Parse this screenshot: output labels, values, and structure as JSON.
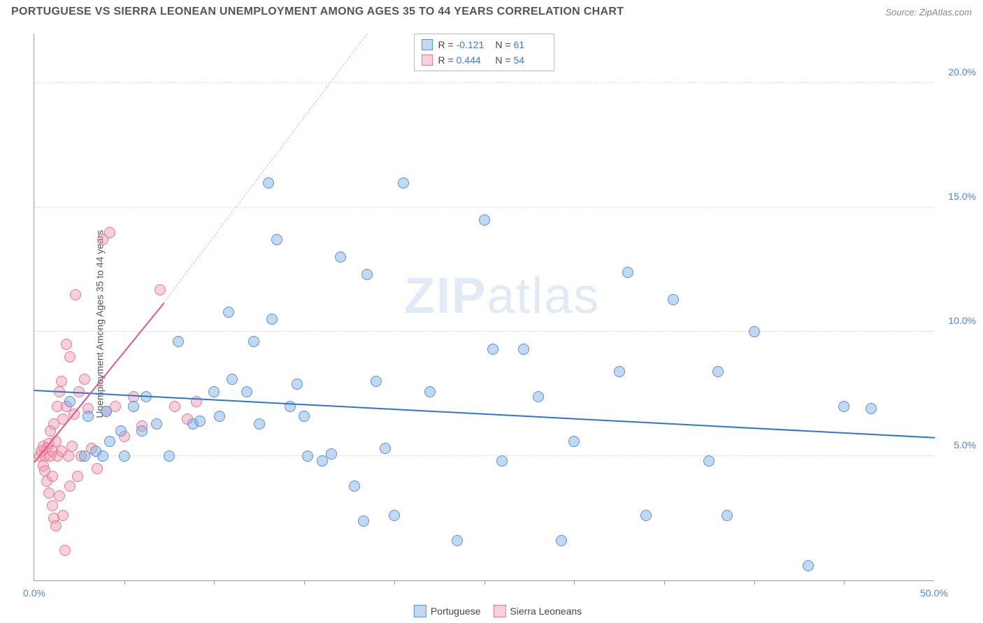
{
  "header": {
    "title": "PORTUGUESE VS SIERRA LEONEAN UNEMPLOYMENT AMONG AGES 35 TO 44 YEARS CORRELATION CHART",
    "source_prefix": "Source: ",
    "source_name": "ZipAtlas.com"
  },
  "ylabel": "Unemployment Among Ages 35 to 44 years",
  "watermark": {
    "bold": "ZIP",
    "rest": "atlas"
  },
  "axes": {
    "xlim": [
      0,
      50
    ],
    "ylim": [
      0,
      22
    ],
    "xtick_marks": [
      5,
      10,
      15,
      20,
      25,
      30,
      35,
      40,
      45
    ],
    "xtick_labels": [
      {
        "v": 0,
        "label": "0.0%"
      },
      {
        "v": 50,
        "label": "50.0%"
      }
    ],
    "ytick_labels": [
      {
        "v": 5,
        "label": "5.0%"
      },
      {
        "v": 10,
        "label": "10.0%"
      },
      {
        "v": 15,
        "label": "15.0%"
      },
      {
        "v": 20,
        "label": "20.0%"
      }
    ],
    "grid_color": "#dddddd",
    "axis_color": "#999999",
    "tick_label_color": "#4a86e8"
  },
  "series": {
    "blue": {
      "label": "Portuguese",
      "fill": "rgba(120,170,230,0.45)",
      "stroke": "#5b8fd6",
      "marker_size": 16,
      "R": "-0.121",
      "N": "61",
      "trend": {
        "x1": 0,
        "y1": 7.7,
        "x2": 50,
        "y2": 5.8,
        "color": "#2f74d0",
        "width": 2,
        "dashed": false
      },
      "points": [
        [
          2.0,
          7.2
        ],
        [
          2.8,
          5.0
        ],
        [
          3.0,
          6.6
        ],
        [
          3.4,
          5.2
        ],
        [
          3.8,
          5.0
        ],
        [
          4.0,
          6.8
        ],
        [
          4.2,
          5.6
        ],
        [
          4.8,
          6.0
        ],
        [
          5.0,
          5.0
        ],
        [
          5.5,
          7.0
        ],
        [
          6.0,
          6.0
        ],
        [
          6.2,
          7.4
        ],
        [
          6.8,
          6.3
        ],
        [
          7.5,
          5.0
        ],
        [
          8.0,
          9.6
        ],
        [
          8.8,
          6.3
        ],
        [
          9.2,
          6.4
        ],
        [
          10.0,
          7.6
        ],
        [
          10.3,
          6.6
        ],
        [
          10.8,
          10.8
        ],
        [
          11.0,
          8.1
        ],
        [
          11.8,
          7.6
        ],
        [
          12.2,
          9.6
        ],
        [
          12.5,
          6.3
        ],
        [
          13.0,
          16.0
        ],
        [
          13.2,
          10.5
        ],
        [
          13.5,
          13.7
        ],
        [
          14.2,
          7.0
        ],
        [
          14.6,
          7.9
        ],
        [
          15.0,
          6.6
        ],
        [
          15.2,
          5.0
        ],
        [
          16.0,
          4.8
        ],
        [
          16.5,
          5.1
        ],
        [
          17.0,
          13.0
        ],
        [
          17.8,
          3.8
        ],
        [
          18.3,
          2.4
        ],
        [
          18.5,
          12.3
        ],
        [
          19.0,
          8.0
        ],
        [
          19.5,
          5.3
        ],
        [
          20.0,
          2.6
        ],
        [
          20.5,
          16.0
        ],
        [
          22.0,
          7.6
        ],
        [
          23.5,
          1.6
        ],
        [
          25.0,
          14.5
        ],
        [
          25.5,
          9.3
        ],
        [
          26.0,
          4.8
        ],
        [
          27.2,
          9.3
        ],
        [
          28.0,
          7.4
        ],
        [
          29.3,
          1.6
        ],
        [
          30.0,
          5.6
        ],
        [
          32.5,
          8.4
        ],
        [
          33.0,
          12.4
        ],
        [
          34.0,
          2.6
        ],
        [
          35.5,
          11.3
        ],
        [
          37.5,
          4.8
        ],
        [
          38.0,
          8.4
        ],
        [
          38.5,
          2.6
        ],
        [
          40.0,
          10.0
        ],
        [
          43.0,
          0.6
        ],
        [
          45.0,
          7.0
        ],
        [
          46.5,
          6.9
        ]
      ]
    },
    "pink": {
      "label": "Sierra Leoneans",
      "fill": "rgba(240,150,170,0.45)",
      "stroke": "#e27a95",
      "marker_size": 16,
      "R": "0.444",
      "N": "54",
      "trend_solid": {
        "x1": 0,
        "y1": 4.8,
        "x2": 7.2,
        "y2": 11.2,
        "color": "#e95587",
        "width": 2
      },
      "trend_dash": {
        "x1": 7.2,
        "y1": 11.2,
        "x2": 18.5,
        "y2": 22,
        "color": "#f4a9bd",
        "width": 1
      },
      "points": [
        [
          0.3,
          5.0
        ],
        [
          0.4,
          5.2
        ],
        [
          0.5,
          4.6
        ],
        [
          0.5,
          5.4
        ],
        [
          0.6,
          5.0
        ],
        [
          0.6,
          4.4
        ],
        [
          0.7,
          5.3
        ],
        [
          0.7,
          4.0
        ],
        [
          0.8,
          5.5
        ],
        [
          0.8,
          3.5
        ],
        [
          0.9,
          5.0
        ],
        [
          0.9,
          6.0
        ],
        [
          1.0,
          5.2
        ],
        [
          1.0,
          3.0
        ],
        [
          1.0,
          4.2
        ],
        [
          1.1,
          6.3
        ],
        [
          1.1,
          2.5
        ],
        [
          1.2,
          5.6
        ],
        [
          1.2,
          2.2
        ],
        [
          1.3,
          7.0
        ],
        [
          1.3,
          5.0
        ],
        [
          1.4,
          3.4
        ],
        [
          1.4,
          7.6
        ],
        [
          1.5,
          5.2
        ],
        [
          1.5,
          8.0
        ],
        [
          1.6,
          6.5
        ],
        [
          1.6,
          2.6
        ],
        [
          1.7,
          1.2
        ],
        [
          1.8,
          9.5
        ],
        [
          1.8,
          7.0
        ],
        [
          1.9,
          5.0
        ],
        [
          2.0,
          3.8
        ],
        [
          2.0,
          9.0
        ],
        [
          2.1,
          5.4
        ],
        [
          2.2,
          6.7
        ],
        [
          2.3,
          11.5
        ],
        [
          2.4,
          4.2
        ],
        [
          2.5,
          7.6
        ],
        [
          2.6,
          5.0
        ],
        [
          2.8,
          8.1
        ],
        [
          3.0,
          6.9
        ],
        [
          3.2,
          5.3
        ],
        [
          3.5,
          4.5
        ],
        [
          3.8,
          13.7
        ],
        [
          4.0,
          6.8
        ],
        [
          4.2,
          14.0
        ],
        [
          4.5,
          7.0
        ],
        [
          5.0,
          5.8
        ],
        [
          5.5,
          7.4
        ],
        [
          6.0,
          6.2
        ],
        [
          7.0,
          11.7
        ],
        [
          7.8,
          7.0
        ],
        [
          8.5,
          6.5
        ],
        [
          9.0,
          7.2
        ]
      ]
    }
  },
  "corr_box": {
    "rows": [
      {
        "swatch_fill": "rgba(120,170,230,0.45)",
        "swatch_stroke": "#5b8fd6",
        "r_label": "R =",
        "r_val": "-0.121",
        "n_label": "N =",
        "n_val": "61"
      },
      {
        "swatch_fill": "rgba(240,150,170,0.45)",
        "swatch_stroke": "#e27a95",
        "r_label": "R =",
        "r_val": "0.444",
        "n_label": "N =",
        "n_val": "54"
      }
    ]
  },
  "legend": {
    "items": [
      {
        "fill": "rgba(120,170,230,0.45)",
        "stroke": "#5b8fd6",
        "label": "Portuguese"
      },
      {
        "fill": "rgba(240,150,170,0.45)",
        "stroke": "#e27a95",
        "label": "Sierra Leoneans"
      }
    ]
  }
}
